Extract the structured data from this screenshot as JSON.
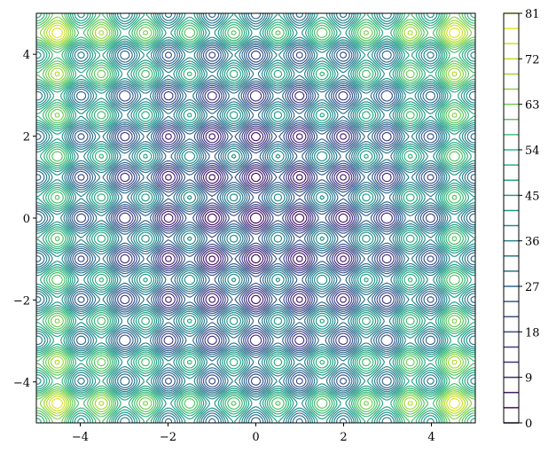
{
  "chart_data": {
    "type": "contour",
    "function": "Rastrigin",
    "x": {
      "min": -5,
      "max": 5,
      "ticks": [
        -4,
        -2,
        0,
        2,
        4
      ],
      "tick_labels": [
        "−4",
        "−2",
        "0",
        "2",
        "4"
      ]
    },
    "y": {
      "min": -5,
      "max": 5,
      "ticks": [
        -4,
        -2,
        0,
        2,
        4
      ],
      "tick_labels": [
        "−4",
        "−2",
        "0",
        "2",
        "4"
      ]
    },
    "z": {
      "min": 0,
      "max": 81,
      "level_step": 3
    },
    "colorbar": {
      "ticks": [
        0,
        9,
        18,
        27,
        36,
        45,
        54,
        63,
        72,
        81
      ],
      "tick_labels": [
        "0",
        "9",
        "18",
        "27",
        "36",
        "45",
        "54",
        "63",
        "72",
        "81"
      ]
    },
    "colormap": "viridis",
    "grid": false,
    "title": "",
    "xlabel": "",
    "ylabel": ""
  }
}
